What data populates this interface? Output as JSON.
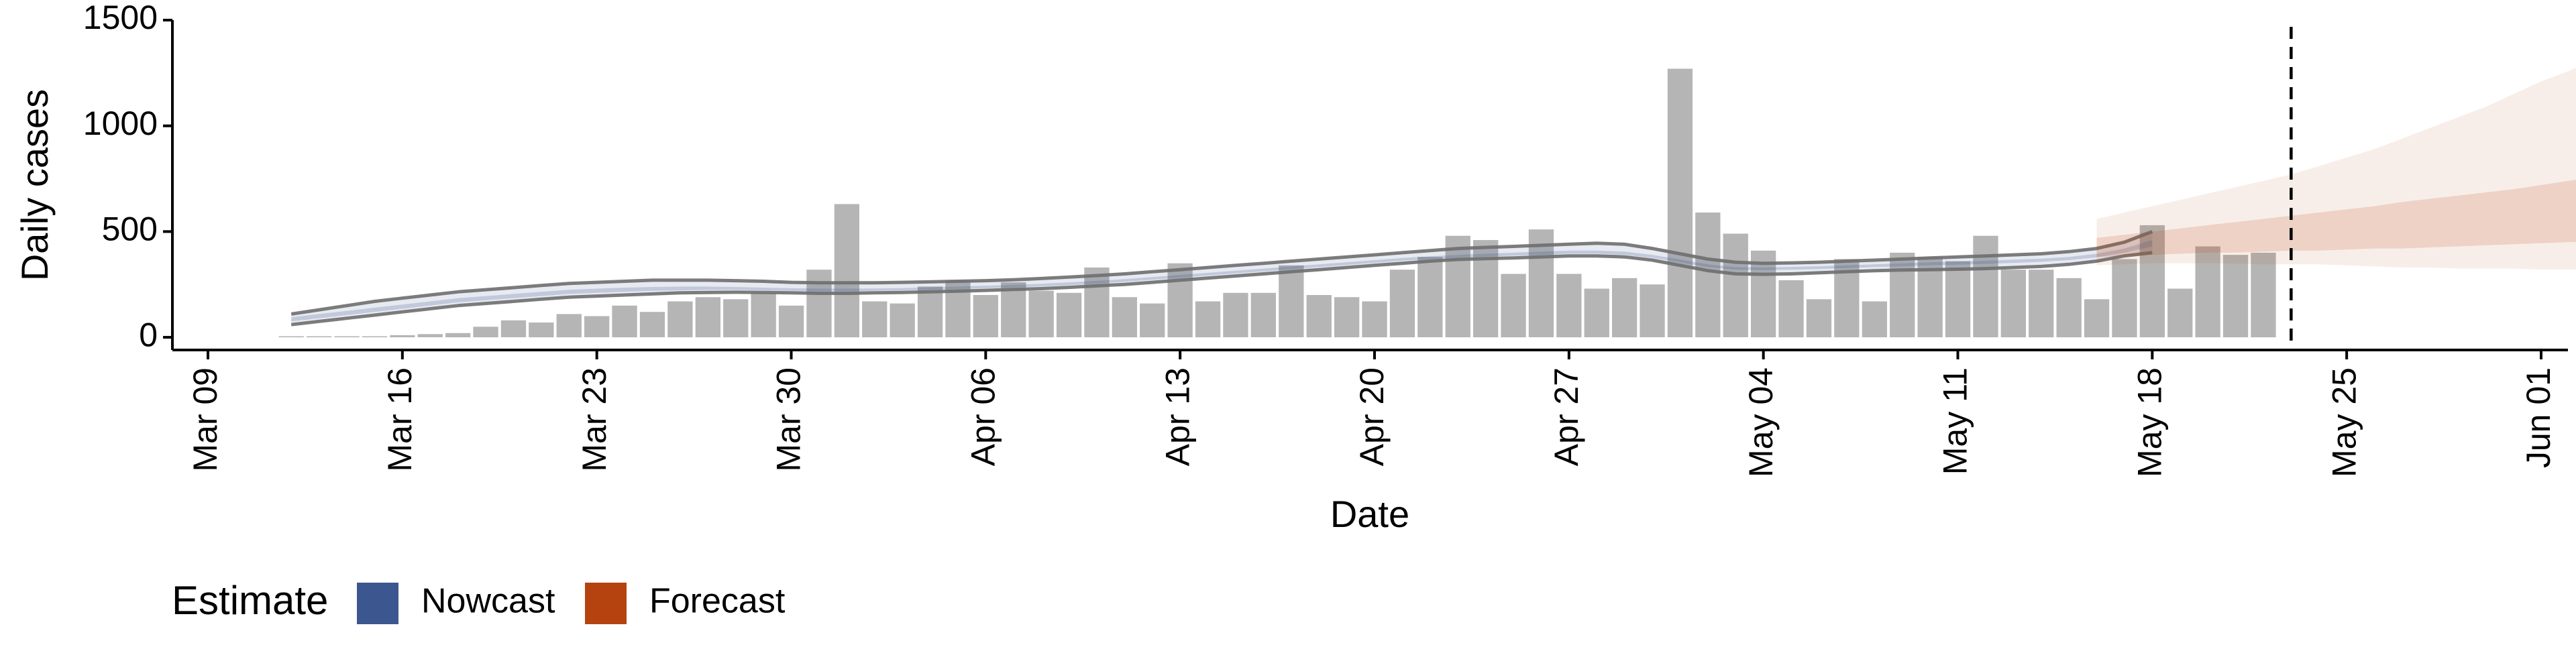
{
  "chart_data": {
    "type": "bar",
    "xlabel": "Date",
    "ylabel": "Daily cases",
    "ylim": [
      -60,
      1500
    ],
    "y_ticks": [
      0,
      500,
      1000,
      1500
    ],
    "y_tick_labels": [
      "0",
      "500",
      "1000",
      "1500"
    ],
    "x_ticks": [
      "2020-03-09",
      "2020-03-16",
      "2020-03-23",
      "2020-03-30",
      "2020-04-06",
      "2020-04-13",
      "2020-04-20",
      "2020-04-27",
      "2020-05-04",
      "2020-05-11",
      "2020-05-18",
      "2020-05-25",
      "2020-06-01"
    ],
    "x_tick_labels": [
      "Mar 09",
      "Mar 16",
      "Mar 23",
      "Mar 30",
      "Apr 06",
      "Apr 13",
      "Apr 20",
      "Apr 27",
      "May 04",
      "May 11",
      "May 18",
      "May 25",
      "Jun 01"
    ],
    "xlim": [
      "2020-03-09",
      "2020-06-01"
    ],
    "grid": false,
    "bar_color": "#b5b5b5",
    "bars": {
      "start_date": "2020-03-12",
      "values": [
        5,
        5,
        5,
        5,
        10,
        15,
        20,
        50,
        80,
        70,
        110,
        100,
        150,
        120,
        170,
        190,
        180,
        210,
        150,
        320,
        630,
        170,
        160,
        240,
        270,
        200,
        260,
        220,
        210,
        330,
        190,
        160,
        350,
        170,
        210,
        210,
        340,
        200,
        190,
        170,
        320,
        380,
        480,
        460,
        300,
        510,
        300,
        230,
        280,
        250,
        1270,
        590,
        490,
        410,
        270,
        180,
        370,
        170,
        400,
        380,
        360,
        480,
        320,
        320,
        280,
        180,
        370,
        530,
        230,
        430,
        390,
        400
      ]
    },
    "nowcast": {
      "start_date": "2020-03-12",
      "color": "#3c568f",
      "outer_color": "#6e6e6e",
      "outer_upper": [
        110,
        130,
        150,
        170,
        185,
        200,
        215,
        225,
        235,
        245,
        255,
        260,
        265,
        270,
        270,
        270,
        268,
        265,
        260,
        258,
        258,
        258,
        260,
        262,
        265,
        268,
        272,
        278,
        285,
        292,
        300,
        310,
        320,
        330,
        340,
        350,
        360,
        370,
        380,
        390,
        400,
        410,
        420,
        425,
        430,
        435,
        440,
        445,
        440,
        420,
        395,
        370,
        355,
        350,
        352,
        355,
        360,
        365,
        370,
        375,
        380,
        385,
        390,
        395,
        405,
        420,
        450,
        500
      ],
      "outer_lower": [
        60,
        75,
        90,
        105,
        120,
        135,
        150,
        160,
        170,
        180,
        190,
        195,
        200,
        205,
        210,
        212,
        213,
        212,
        210,
        208,
        208,
        210,
        212,
        215,
        218,
        222,
        226,
        230,
        236,
        243,
        250,
        260,
        270,
        280,
        290,
        300,
        310,
        320,
        330,
        340,
        350,
        360,
        368,
        372,
        375,
        380,
        385,
        385,
        380,
        365,
        340,
        315,
        300,
        298,
        300,
        305,
        310,
        315,
        318,
        320,
        322,
        325,
        330,
        335,
        345,
        360,
        385,
        400
      ],
      "inner_upper": [
        95,
        110,
        125,
        140,
        155,
        170,
        185,
        195,
        205,
        215,
        225,
        230,
        235,
        238,
        240,
        240,
        238,
        235,
        232,
        230,
        230,
        231,
        233,
        236,
        240,
        244,
        248,
        253,
        260,
        267,
        275,
        285,
        295,
        305,
        315,
        325,
        335,
        345,
        355,
        365,
        375,
        383,
        390,
        395,
        400,
        405,
        410,
        410,
        405,
        390,
        368,
        345,
        332,
        330,
        333,
        336,
        340,
        345,
        350,
        355,
        358,
        362,
        367,
        372,
        380,
        395,
        420,
        460
      ],
      "inner_lower": [
        75,
        90,
        105,
        120,
        135,
        150,
        165,
        175,
        185,
        195,
        205,
        210,
        215,
        220,
        222,
        224,
        224,
        222,
        220,
        218,
        218,
        220,
        222,
        225,
        228,
        232,
        236,
        241,
        247,
        254,
        262,
        272,
        282,
        292,
        302,
        312,
        322,
        332,
        342,
        352,
        362,
        370,
        377,
        382,
        386,
        390,
        395,
        395,
        390,
        376,
        354,
        332,
        320,
        318,
        320,
        323,
        327,
        332,
        336,
        340,
        343,
        347,
        352,
        357,
        365,
        378,
        400,
        430
      ]
    },
    "forecast": {
      "start_date": "2020-05-16",
      "color": "#b5430f",
      "outer_upper": [
        560,
        590,
        620,
        650,
        680,
        710,
        740,
        770,
        810,
        850,
        890,
        940,
        990,
        1040,
        1090,
        1150,
        1210,
        1260,
        1320,
        1380,
        1440
      ],
      "outer_lower": [
        340,
        345,
        350,
        350,
        350,
        348,
        345,
        345,
        345,
        340,
        335,
        330,
        330,
        325,
        325,
        325,
        320,
        320,
        320,
        325,
        330
      ],
      "inner_upper": [
        470,
        485,
        500,
        515,
        530,
        545,
        560,
        575,
        590,
        605,
        620,
        640,
        655,
        670,
        685,
        700,
        720,
        740,
        760,
        780,
        800
      ],
      "inner_lower": [
        380,
        385,
        390,
        395,
        400,
        400,
        405,
        410,
        410,
        415,
        420,
        420,
        425,
        430,
        435,
        440,
        445,
        450,
        455,
        460,
        465
      ]
    },
    "vline_date": "2020-05-23",
    "legend": {
      "title": "Estimate",
      "position": "bottom-left",
      "items": [
        {
          "label": "Nowcast",
          "color": "#3c568f"
        },
        {
          "label": "Forecast",
          "color": "#b5430f"
        }
      ]
    }
  }
}
